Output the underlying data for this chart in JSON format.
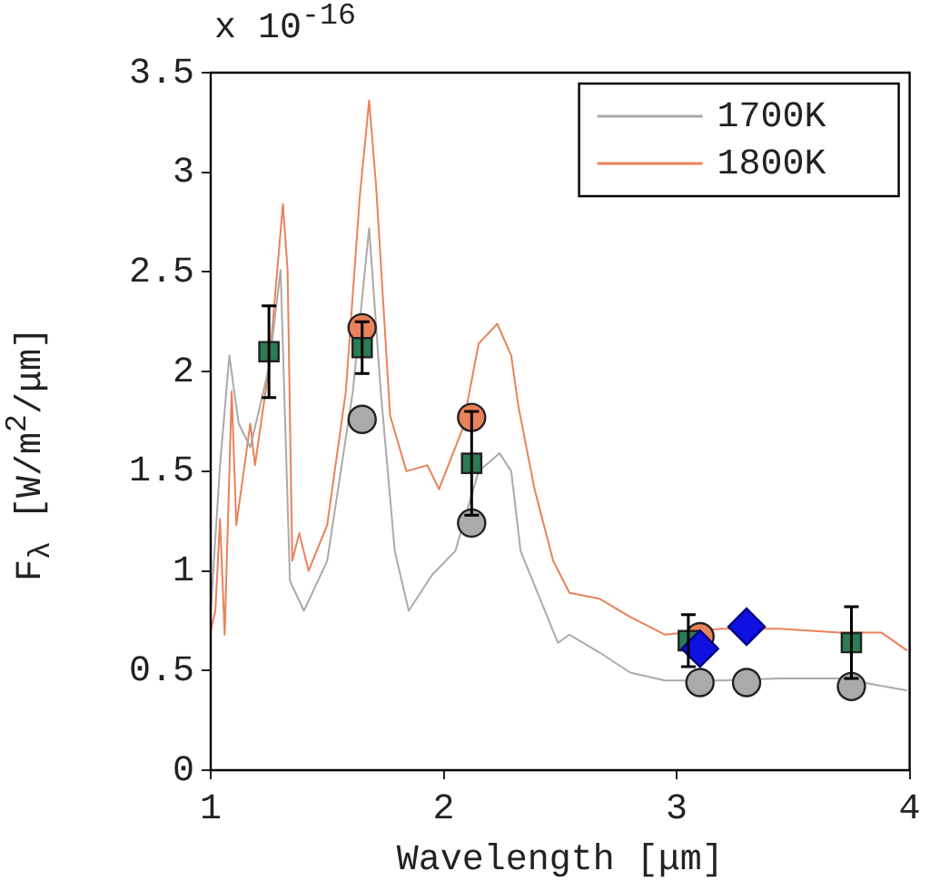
{
  "chart_data": {
    "type": "line",
    "xlabel": "Wavelength [μm]",
    "ylabel": "F$_{λ}$ [W/m$^{2}$/μm]",
    "annotations": [
      "x 10$^{-16}$"
    ],
    "xlim": [
      1,
      4
    ],
    "xticks": [
      1,
      2,
      3,
      4
    ],
    "ylim": [
      0,
      3.5
    ],
    "yticks": [
      0,
      0.5,
      1,
      1.5,
      2,
      2.5,
      3,
      3.5
    ],
    "grid": false,
    "legend": "top right",
    "series": [
      {
        "name": "1700K",
        "color": "#aaaaaa",
        "marker": "none",
        "x": [
          1.0,
          1.04,
          1.08,
          1.12,
          1.17,
          1.25,
          1.3,
          1.34,
          1.4,
          1.5,
          1.61,
          1.68,
          1.73,
          1.79,
          1.85,
          1.95,
          2.05,
          2.15,
          2.24,
          2.29,
          2.33,
          2.49,
          2.54,
          2.67,
          2.8,
          2.95,
          3.19,
          3.44,
          3.7,
          3.99
        ],
        "values": [
          0.8,
          1.53,
          2.08,
          1.74,
          1.62,
          2.02,
          2.51,
          0.95,
          0.8,
          1.05,
          1.9,
          2.72,
          1.9,
          1.1,
          0.8,
          0.98,
          1.1,
          1.5,
          1.59,
          1.5,
          1.1,
          0.64,
          0.68,
          0.59,
          0.49,
          0.45,
          0.45,
          0.46,
          0.46,
          0.4
        ]
      },
      {
        "name": "1800K",
        "color": "#e8825a",
        "marker": "none",
        "x": [
          1.0,
          1.02,
          1.04,
          1.06,
          1.09,
          1.11,
          1.17,
          1.19,
          1.25,
          1.31,
          1.33,
          1.35,
          1.38,
          1.42,
          1.5,
          1.58,
          1.64,
          1.68,
          1.71,
          1.77,
          1.84,
          1.93,
          1.98,
          2.08,
          2.15,
          2.23,
          2.29,
          2.32,
          2.39,
          2.47,
          2.54,
          2.67,
          2.8,
          2.95,
          3.19,
          3.44,
          3.7,
          3.88,
          3.99
        ],
        "values": [
          0.7,
          0.8,
          1.26,
          0.68,
          1.9,
          1.23,
          1.74,
          1.53,
          2.02,
          2.84,
          2.51,
          1.05,
          1.19,
          1.0,
          1.23,
          1.9,
          2.88,
          3.36,
          2.93,
          1.78,
          1.5,
          1.53,
          1.41,
          1.71,
          2.14,
          2.24,
          2.08,
          1.83,
          1.41,
          1.05,
          0.89,
          0.86,
          0.77,
          0.68,
          0.71,
          0.71,
          0.69,
          0.69,
          0.6
        ]
      },
      {
        "type": "scatter",
        "color": "#aaaaaa",
        "marker": "circle",
        "x": [
          1.65,
          2.12,
          3.1,
          3.3,
          3.75
        ],
        "values": [
          1.76,
          1.24,
          0.44,
          0.44,
          0.42
        ]
      },
      {
        "type": "scatter",
        "color": "#e8825a",
        "marker": "circle",
        "x": [
          1.65,
          2.12,
          3.1
        ],
        "values": [
          2.22,
          1.77,
          0.67
        ]
      },
      {
        "type": "scatter",
        "color": "#2a7d55",
        "marker": "square",
        "x": [
          1.25,
          1.65,
          2.12,
          3.05,
          3.75
        ],
        "values": [
          2.1,
          2.12,
          1.54,
          0.65,
          0.64
        ],
        "errors": [
          0.23,
          0.13,
          0.26,
          0.13,
          0.18
        ]
      },
      {
        "type": "scatter",
        "color": "#1010e0",
        "marker": "diamond",
        "x": [
          3.1,
          3.3
        ],
        "values": [
          0.61,
          0.72
        ]
      }
    ]
  }
}
